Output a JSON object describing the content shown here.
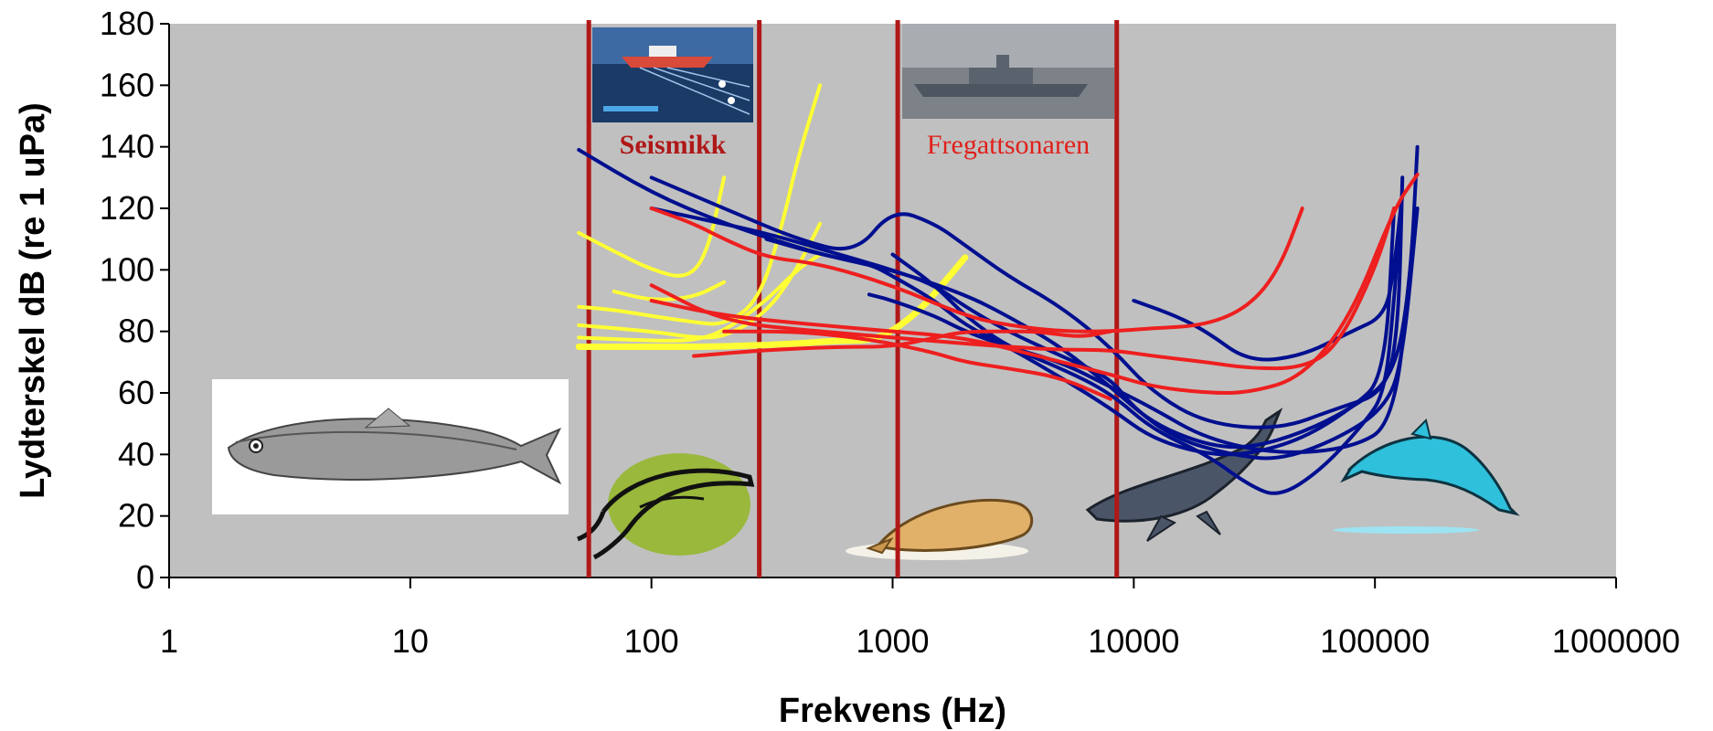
{
  "chart_data": {
    "type": "line",
    "xscale": "log",
    "xlim": [
      1,
      1000000
    ],
    "ylim": [
      0,
      180
    ],
    "xticks": [
      "1",
      "10",
      "100",
      "1000",
      "10000",
      "100000",
      "1000000"
    ],
    "yticks": [
      "0",
      "20",
      "40",
      "60",
      "80",
      "100",
      "120",
      "140",
      "160",
      "180"
    ],
    "xlabel": "Frekvens (Hz)",
    "ylabel": "Lydterskel dB (re 1 uPa)",
    "grid": false,
    "plot_background": "#c0c0c0",
    "band_lines_x": [
      55,
      280,
      1050,
      8500
    ],
    "band_line_color": "#b01818",
    "bands": [
      {
        "label": "Seismikk",
        "color": "#b01818"
      },
      {
        "label": "Fregattsonaren",
        "color": "#e0201a"
      }
    ],
    "groups": [
      {
        "color": "#ffff33",
        "series": [
          {
            "x": [
              50,
              100,
              200,
              400,
              600,
              800,
              1000,
              1300,
              1600,
              2000
            ],
            "y": [
              75,
              75,
              75,
              76,
              77,
              77,
              80,
              87,
              95,
              104
            ],
            "width": 7
          },
          {
            "x": [
              50,
              70,
              100,
              150,
              200,
              280,
              350,
              400,
              500
            ],
            "y": [
              88,
              87,
              85,
              83,
              82,
              90,
              115,
              135,
              160
            ],
            "width": 4
          },
          {
            "x": [
              50,
              70,
              100,
              140,
              170,
              200
            ],
            "y": [
              112,
              106,
              100,
              97,
              105,
              130
            ],
            "width": 4
          },
          {
            "x": [
              50,
              100,
              150,
              200,
              300,
              400,
              500
            ],
            "y": [
              82,
              80,
              78,
              78,
              86,
              100,
              115
            ],
            "width": 4
          },
          {
            "x": [
              50,
              100,
              150,
              200,
              300,
              400,
              500
            ],
            "y": [
              78,
              77,
              77,
              80,
              90,
              100,
              105
            ],
            "width": 4
          },
          {
            "x": [
              70,
              100,
              150,
              200
            ],
            "y": [
              93,
              90,
              91,
              96
            ],
            "width": 4
          }
        ]
      },
      {
        "color": "#000f8f",
        "series": [
          {
            "x": [
              50,
              100,
              200,
              500,
              1000,
              2000,
              3000,
              5000,
              8000,
              12000,
              20000,
              30000,
              50000,
              80000,
              120000,
              140000,
              150000
            ],
            "y": [
              139,
              125,
              115,
              105,
              100,
              92,
              85,
              75,
              62,
              50,
              43,
              42,
              47,
              55,
              65,
              95,
              140
            ]
          },
          {
            "x": [
              100,
              200,
              400,
              700,
              1000,
              1500,
              2000,
              3000,
              5000,
              8000,
              12000,
              20000,
              40000,
              70000,
              110000,
              125000,
              130000
            ],
            "y": [
              130,
              120,
              110,
              105,
              120,
              115,
              108,
              98,
              88,
              75,
              60,
              50,
              48,
              55,
              60,
              80,
              130
            ]
          },
          {
            "x": [
              100,
              300,
              600,
              1000,
              1500,
              2000,
              3000,
              5000,
              8000,
              10000,
              15000,
              25000,
              40000,
              70000,
              110000,
              130000,
              150000
            ],
            "y": [
              120,
              112,
              105,
              100,
              95,
              88,
              80,
              72,
              65,
              55,
              45,
              40,
              38,
              45,
              55,
              70,
              120
            ]
          },
          {
            "x": [
              1000,
              1500,
              2000,
              3000,
              5000,
              8000,
              12000,
              20000,
              30000,
              40000,
              60000,
              90000,
              110000,
              120000,
              130000
            ],
            "y": [
              105,
              95,
              85,
              75,
              68,
              60,
              48,
              40,
              30,
              26,
              35,
              50,
              60,
              90,
              125
            ]
          },
          {
            "x": [
              300,
              500,
              800,
              1000,
              1500,
              2000,
              3000,
              5000,
              8000,
              12000,
              20000,
              30000,
              50000,
              80000,
              110000,
              120000
            ],
            "y": [
              110,
              105,
              102,
              98,
              90,
              82,
              75,
              65,
              55,
              45,
              40,
              40,
              45,
              55,
              65,
              120
            ]
          },
          {
            "x": [
              10000,
              15000,
              20000,
              30000,
              50000,
              80000,
              110000,
              120000,
              130000
            ],
            "y": [
              90,
              85,
              80,
              70,
              72,
              80,
              85,
              100,
              125
            ]
          },
          {
            "x": [
              800,
              1000,
              1500,
              2000,
              3000,
              5000,
              8000,
              12000,
              20000,
              40000,
              80000,
              120000,
              140000
            ],
            "y": [
              92,
              90,
              85,
              80,
              75,
              70,
              62,
              55,
              45,
              40,
              42,
              50,
              100
            ]
          }
        ]
      },
      {
        "color": "#ee1f1f",
        "series": [
          {
            "x": [
              100,
              150,
              200,
              300,
              500,
              1000,
              2000,
              3000,
              5000,
              8000,
              12000,
              20000,
              30000,
              40000,
              50000
            ],
            "y": [
              120,
              115,
              110,
              104,
              102,
              95,
              85,
              82,
              80,
              80,
              81,
              82,
              88,
              100,
              120
            ]
          },
          {
            "x": [
              100,
              200,
              500,
              1000,
              2000,
              3000,
              5000,
              8000,
              12000,
              20000,
              30000,
              50000,
              70000,
              100000,
              120000
            ],
            "y": [
              95,
              83,
              80,
              78,
              76,
              75,
              74,
              74,
              72,
              70,
              68,
              68,
              75,
              100,
              120
            ]
          },
          {
            "x": [
              100,
              200,
              500,
              1000,
              2000,
              4000,
              8000,
              12000,
              20000,
              30000,
              50000,
              80000,
              120000,
              150000
            ],
            "y": [
              90,
              85,
              82,
              80,
              78,
              72,
              66,
              62,
              60,
              60,
              65,
              85,
              120,
              131
            ]
          },
          {
            "x": [
              150,
              300,
              600,
              1000,
              1500,
              2000,
              3000,
              4000,
              6000,
              8000
            ],
            "y": [
              72,
              74,
              75,
              75,
              78,
              80,
              80,
              80,
              78,
              80
            ]
          },
          {
            "x": [
              200,
              400,
              700,
              1000,
              1500,
              2000,
              3000,
              5000,
              8000
            ],
            "y": [
              80,
              80,
              78,
              76,
              73,
              70,
              68,
              65,
              58
            ]
          }
        ]
      }
    ]
  }
}
